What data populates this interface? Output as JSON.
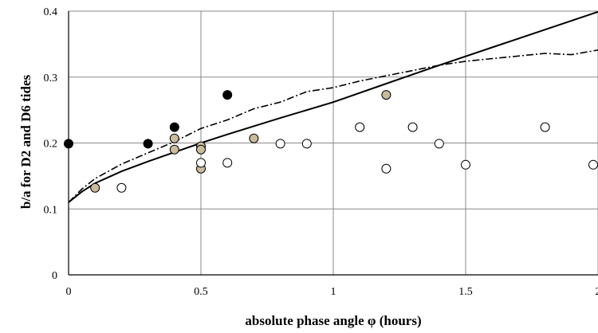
{
  "chart_data": {
    "type": "scatter",
    "title": "",
    "xlabel": "absolute phase angle φ (hours)",
    "ylabel": "b/a for D2 and D6 tides",
    "xlim": [
      0,
      2
    ],
    "ylim": [
      0,
      0.4
    ],
    "x_ticks": [
      "0",
      "0.5",
      "1",
      "1.5",
      "2"
    ],
    "y_ticks": [
      "0",
      "0.1",
      "0.2",
      "0.3",
      "0.4"
    ],
    "grid": true,
    "legend": "none",
    "series": [
      {
        "kind": "points",
        "marker": "filled",
        "fill": "#000000",
        "x": [
          0.0,
          0.3,
          0.4,
          0.6
        ],
        "y": [
          0.199,
          0.199,
          0.224,
          0.273
        ]
      },
      {
        "kind": "points",
        "marker": "filled",
        "fill": "#c8bc9c",
        "x": [
          0.1,
          0.4,
          0.4,
          0.5,
          0.5,
          0.5,
          0.7,
          1.2
        ],
        "y": [
          0.132,
          0.207,
          0.19,
          0.195,
          0.19,
          0.161,
          0.207,
          0.273
        ]
      },
      {
        "kind": "points",
        "marker": "open",
        "fill": "#ffffff",
        "x": [
          0.2,
          0.5,
          0.6,
          0.8,
          0.9,
          1.1,
          1.2,
          1.3,
          1.4,
          1.5,
          1.8,
          2.0
        ],
        "y": [
          0.132,
          0.17,
          0.17,
          0.199,
          0.199,
          0.224,
          0.161,
          0.224,
          0.199,
          0.167,
          0.224,
          0.167
        ]
      },
      {
        "kind": "line",
        "style": "solid",
        "x": [
          0,
          0.05,
          0.1,
          0.2,
          0.3,
          0.4,
          0.5,
          0.6,
          0.8,
          1.0,
          1.2,
          1.4,
          1.6,
          1.8,
          2.0
        ],
        "y": [
          0.11,
          0.126,
          0.139,
          0.157,
          0.172,
          0.186,
          0.2,
          0.213,
          0.238,
          0.262,
          0.29,
          0.318,
          0.345,
          0.372,
          0.399
        ]
      },
      {
        "kind": "line",
        "style": "dash-dot",
        "x": [
          0,
          0.05,
          0.1,
          0.2,
          0.3,
          0.4,
          0.5,
          0.6,
          0.7,
          0.8,
          0.9,
          1.0,
          1.1,
          1.2,
          1.3,
          1.4,
          1.5,
          1.6,
          1.7,
          1.8,
          1.9,
          2.0
        ],
        "y": [
          0.11,
          0.13,
          0.146,
          0.168,
          0.185,
          0.202,
          0.222,
          0.235,
          0.252,
          0.262,
          0.278,
          0.284,
          0.294,
          0.302,
          0.31,
          0.318,
          0.324,
          0.328,
          0.332,
          0.336,
          0.334,
          0.341
        ]
      }
    ]
  }
}
